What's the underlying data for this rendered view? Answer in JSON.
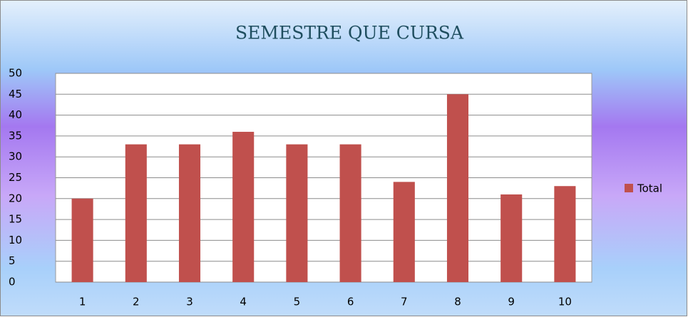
{
  "chart_data": {
    "type": "bar",
    "title": "SEMESTRE QUE CURSA",
    "categories": [
      "1",
      "2",
      "3",
      "4",
      "5",
      "6",
      "7",
      "8",
      "9",
      "10"
    ],
    "series": [
      {
        "name": "Total",
        "color": "#c0504d",
        "values": [
          20,
          33,
          33,
          36,
          33,
          33,
          24,
          45,
          21,
          23
        ]
      }
    ],
    "ylim": [
      0,
      50
    ],
    "yticks": [
      0,
      5,
      10,
      15,
      20,
      25,
      30,
      35,
      40,
      45,
      50
    ],
    "grid": true,
    "legend": "right"
  }
}
